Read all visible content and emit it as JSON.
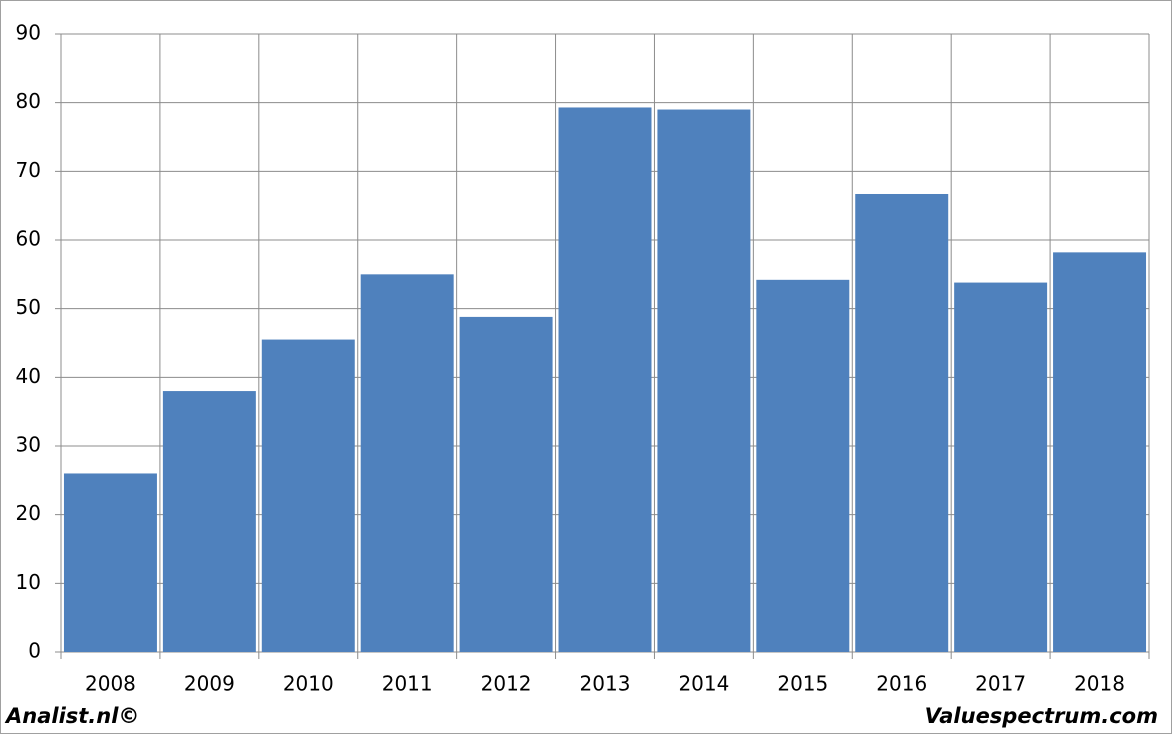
{
  "chart_data": {
    "type": "bar",
    "categories": [
      "2008",
      "2009",
      "2010",
      "2011",
      "2012",
      "2013",
      "2014",
      "2015",
      "2016",
      "2017",
      "2018"
    ],
    "values": [
      26,
      38,
      45.5,
      55,
      48.8,
      79.3,
      79,
      54.2,
      66.7,
      53.8,
      58.2
    ],
    "color": "#4f81bd",
    "ylim": [
      0,
      90
    ],
    "yticks": [
      0,
      10,
      20,
      30,
      40,
      50,
      60,
      70,
      80,
      90
    ],
    "grid": true,
    "annotations": [
      "Analist.nl©",
      "Valuespectrum.com"
    ]
  }
}
